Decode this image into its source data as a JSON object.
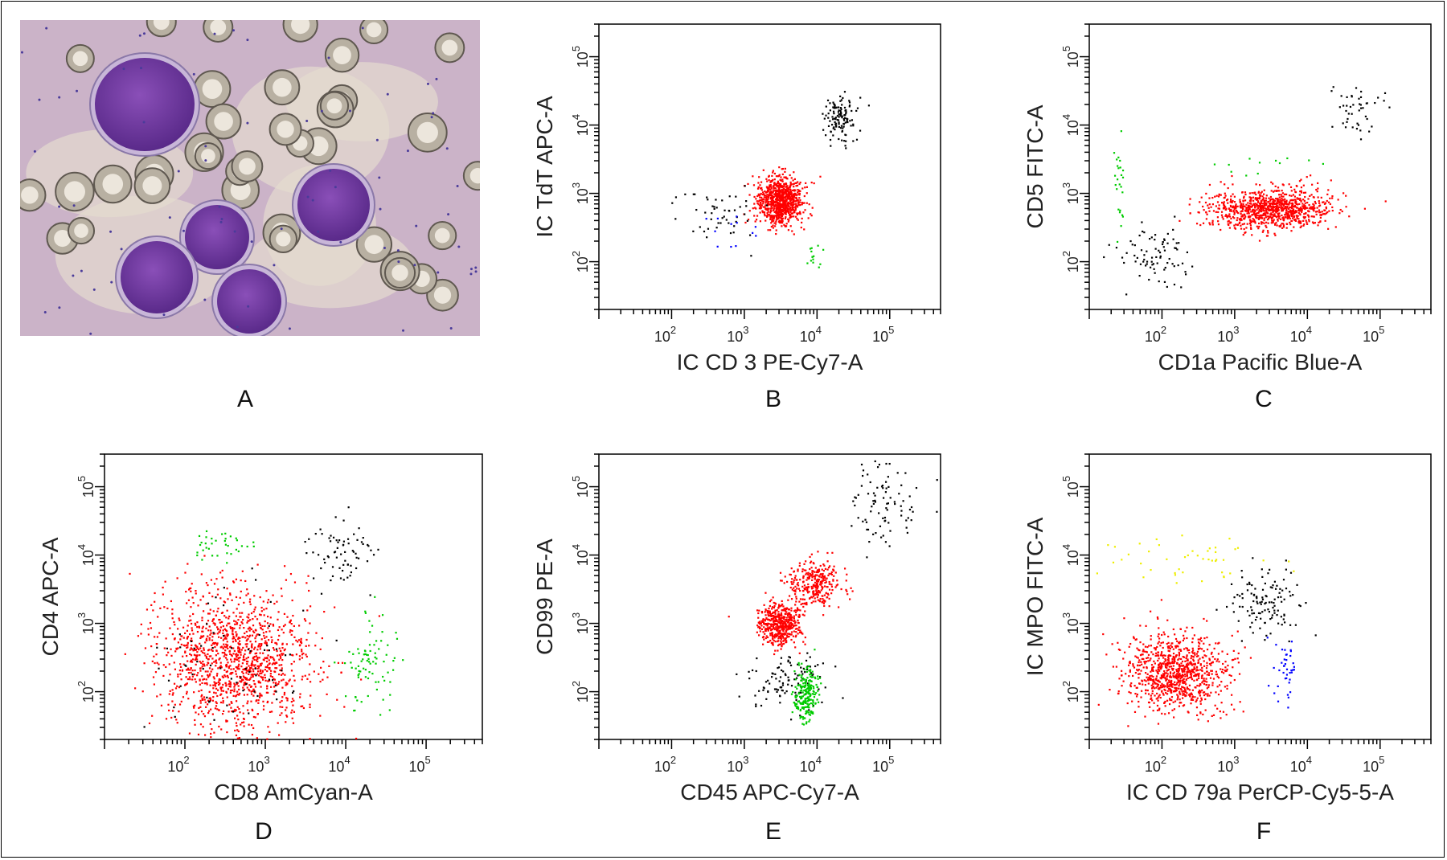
{
  "panel_letters": [
    "A",
    "B",
    "C",
    "D",
    "E",
    "F"
  ],
  "photo": {
    "panel": "A"
  },
  "chart_data": [
    {
      "panel": "B",
      "type": "scatter",
      "xlabel": "IC CD 3 PE-Cy7-A",
      "ylabel": "IC TdT APC-A",
      "scale": "log",
      "xlim": [
        10,
        500000
      ],
      "ylim": [
        20,
        300000
      ],
      "xticks": [
        {
          "v": 100,
          "label": "10",
          "exp": "2"
        },
        {
          "v": 1000,
          "label": "10",
          "exp": "3"
        },
        {
          "v": 10000,
          "label": "10",
          "exp": "4"
        },
        {
          "v": 100000,
          "label": "10",
          "exp": "5"
        }
      ],
      "yticks": [
        {
          "v": 100,
          "label": "10",
          "exp": "2"
        },
        {
          "v": 1000,
          "label": "10",
          "exp": "3"
        },
        {
          "v": 10000,
          "label": "10",
          "exp": "4"
        },
        {
          "v": 100000,
          "label": "10",
          "exp": "5"
        }
      ],
      "series": [
        {
          "color": "#ff0000",
          "clusters": [
            {
              "x": [
                3000,
                1.4
              ],
              "y": [
                800,
                1.5
              ],
              "n": 850
            }
          ]
        },
        {
          "color": "#000000",
          "clusters": [
            {
              "x": [
                20000,
                1.3
              ],
              "y": [
                12000,
                1.5
              ],
              "n": 120
            },
            {
              "x": [
                400,
                1.9
              ],
              "y": [
                600,
                1.6
              ],
              "n": 50
            }
          ]
        },
        {
          "color": "#0000ff",
          "clusters": [
            {
              "x": [
                700,
                1.5
              ],
              "y": [
                300,
                1.6
              ],
              "n": 12
            }
          ]
        },
        {
          "color": "#00cc00",
          "clusters": [
            {
              "x": [
                9000,
                1.2
              ],
              "y": [
                120,
                1.3
              ],
              "n": 14
            }
          ]
        }
      ]
    },
    {
      "panel": "C",
      "type": "scatter",
      "xlabel": "CD1a Pacific Blue-A",
      "ylabel": "CD5 FITC-A",
      "scale": "log",
      "xlim": [
        10,
        500000
      ],
      "ylim": [
        20,
        300000
      ],
      "xticks": [
        {
          "v": 100,
          "label": "10",
          "exp": "2"
        },
        {
          "v": 1000,
          "label": "10",
          "exp": "3"
        },
        {
          "v": 10000,
          "label": "10",
          "exp": "4"
        },
        {
          "v": 100000,
          "label": "10",
          "exp": "5"
        }
      ],
      "yticks": [
        {
          "v": 100,
          "label": "10",
          "exp": "2"
        },
        {
          "v": 1000,
          "label": "10",
          "exp": "3"
        },
        {
          "v": 10000,
          "label": "10",
          "exp": "4"
        },
        {
          "v": 100000,
          "label": "10",
          "exp": "5"
        }
      ],
      "series": [
        {
          "color": "#ff0000",
          "clusters": [
            {
              "x": [
                3000,
                2.6
              ],
              "y": [
                600,
                1.4
              ],
              "n": 950
            }
          ]
        },
        {
          "color": "#000000",
          "clusters": [
            {
              "x": [
                80,
                1.8
              ],
              "y": [
                120,
                1.6
              ],
              "n": 80
            },
            {
              "x": [
                50000,
                1.6
              ],
              "y": [
                20000,
                1.5
              ],
              "n": 45
            }
          ]
        },
        {
          "color": "#00cc00",
          "clusters": [
            {
              "x": [
                25,
                1.1
              ],
              "y": [
                1500,
                3
              ],
              "n": 25
            },
            {
              "x": [
                3000,
                3
              ],
              "y": [
                2500,
                1.3
              ],
              "n": 12
            }
          ]
        }
      ]
    },
    {
      "panel": "D",
      "type": "scatter",
      "xlabel": "CD8 AmCyan-A",
      "ylabel": "CD4 APC-A",
      "scale": "log",
      "xlim": [
        10,
        500000
      ],
      "ylim": [
        20,
        300000
      ],
      "xticks": [
        {
          "v": 100,
          "label": "10",
          "exp": "2"
        },
        {
          "v": 1000,
          "label": "10",
          "exp": "3"
        },
        {
          "v": 10000,
          "label": "10",
          "exp": "4"
        },
        {
          "v": 100000,
          "label": "10",
          "exp": "5"
        }
      ],
      "yticks": [
        {
          "v": 100,
          "label": "10",
          "exp": "2"
        },
        {
          "v": 1000,
          "label": "10",
          "exp": "3"
        },
        {
          "v": 10000,
          "label": "10",
          "exp": "4"
        },
        {
          "v": 100000,
          "label": "10",
          "exp": "5"
        }
      ],
      "series": [
        {
          "color": "#ff0000",
          "clusters": [
            {
              "x": [
                400,
                3
              ],
              "y": [
                300,
                3.2
              ],
              "n": 1300
            }
          ]
        },
        {
          "color": "#000000",
          "clusters": [
            {
              "x": [
                9000,
                1.6
              ],
              "y": [
                12000,
                1.8
              ],
              "n": 70
            },
            {
              "x": [
                400,
                3
              ],
              "y": [
                300,
                3
              ],
              "n": 70
            }
          ]
        },
        {
          "color": "#00cc00",
          "clusters": [
            {
              "x": [
                250,
                1.7
              ],
              "y": [
                14000,
                1.3
              ],
              "n": 35
            },
            {
              "x": [
                20000,
                1.5
              ],
              "y": [
                250,
                2.2
              ],
              "n": 80
            }
          ]
        }
      ]
    },
    {
      "panel": "E",
      "type": "scatter",
      "xlabel": "CD45 APC-Cy7-A",
      "ylabel": "CD99 PE-A",
      "scale": "log",
      "xlim": [
        10,
        500000
      ],
      "ylim": [
        20,
        300000
      ],
      "xticks": [
        {
          "v": 100,
          "label": "10",
          "exp": "2"
        },
        {
          "v": 1000,
          "label": "10",
          "exp": "3"
        },
        {
          "v": 10000,
          "label": "10",
          "exp": "4"
        },
        {
          "v": 100000,
          "label": "10",
          "exp": "5"
        }
      ],
      "yticks": [
        {
          "v": 100,
          "label": "10",
          "exp": "2"
        },
        {
          "v": 1000,
          "label": "10",
          "exp": "3"
        },
        {
          "v": 10000,
          "label": "10",
          "exp": "4"
        },
        {
          "v": 100000,
          "label": "10",
          "exp": "5"
        }
      ],
      "series": [
        {
          "color": "#ff0000",
          "clusters": [
            {
              "x": [
                3000,
                1.4
              ],
              "y": [
                1000,
                1.4
              ],
              "n": 500
            },
            {
              "x": [
                9000,
                1.5
              ],
              "y": [
                4000,
                1.5
              ],
              "n": 300
            }
          ]
        },
        {
          "color": "#000000",
          "clusters": [
            {
              "x": [
                80000,
                2
              ],
              "y": [
                60000,
                2
              ],
              "n": 90
            },
            {
              "x": [
                4000,
                1.8
              ],
              "y": [
                150,
                1.6
              ],
              "n": 110
            }
          ]
        },
        {
          "color": "#00cc00",
          "clusters": [
            {
              "x": [
                7000,
                1.2
              ],
              "y": [
                90,
                1.6
              ],
              "n": 220
            }
          ]
        }
      ]
    },
    {
      "panel": "F",
      "type": "scatter",
      "xlabel": "IC CD 79a PerCP-Cy5-5-A",
      "ylabel": "IC MPO FITC-A",
      "scale": "log",
      "xlim": [
        10,
        500000
      ],
      "ylim": [
        20,
        300000
      ],
      "xticks": [
        {
          "v": 100,
          "label": "10",
          "exp": "2"
        },
        {
          "v": 1000,
          "label": "10",
          "exp": "3"
        },
        {
          "v": 10000,
          "label": "10",
          "exp": "4"
        },
        {
          "v": 100000,
          "label": "10",
          "exp": "5"
        }
      ],
      "yticks": [
        {
          "v": 100,
          "label": "10",
          "exp": "2"
        },
        {
          "v": 1000,
          "label": "10",
          "exp": "3"
        },
        {
          "v": 10000,
          "label": "10",
          "exp": "4"
        },
        {
          "v": 100000,
          "label": "10",
          "exp": "5"
        }
      ],
      "series": [
        {
          "color": "#ff0000",
          "clusters": [
            {
              "x": [
                150,
                2.2
              ],
              "y": [
                200,
                1.9
              ],
              "n": 900
            }
          ]
        },
        {
          "color": "#000000",
          "clusters": [
            {
              "x": [
                2500,
                1.8
              ],
              "y": [
                2000,
                1.8
              ],
              "n": 120
            }
          ]
        },
        {
          "color": "#eeee00",
          "clusters": [
            {
              "x": [
                300,
                3.5
              ],
              "y": [
                8000,
                1.5
              ],
              "n": 45
            }
          ]
        },
        {
          "color": "#0000ff",
          "clusters": [
            {
              "x": [
                5000,
                1.3
              ],
              "y": [
                200,
                1.8
              ],
              "n": 40
            }
          ]
        }
      ]
    }
  ]
}
